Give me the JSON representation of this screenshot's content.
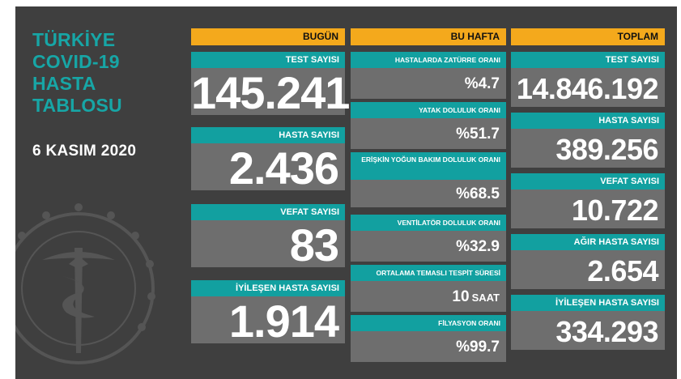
{
  "title_lines": [
    "TÜRKİYE",
    "COVID-19",
    "HASTA",
    "TABLOSU"
  ],
  "date": "6 KASIM 2020",
  "colors": {
    "teal": "#12a0a0",
    "orange": "#f4a91c",
    "board": "#3f3f3f",
    "cell": "#6e6e6e"
  },
  "today": {
    "header": "BUGÜN",
    "cards": [
      {
        "label": "TEST SAYISI",
        "value": "145.241"
      },
      {
        "label": "HASTA SAYISI",
        "value": "2.436"
      },
      {
        "label": "VEFAT SAYISI",
        "value": "83"
      },
      {
        "label": "İYİLEŞEN HASTA SAYISI",
        "value": "1.914"
      }
    ]
  },
  "week": {
    "header": "BU HAFTA",
    "cards": [
      {
        "label": "HASTALARDA ZATÜRRE ORANI",
        "value": "%4.7",
        "unit": ""
      },
      {
        "label": "YATAK DOLULUK ORANI",
        "value": "%51.7",
        "unit": ""
      },
      {
        "label": "ERİŞKİN YOĞUN BAKIM DOLULUK ORANI",
        "value": "%68.5",
        "unit": ""
      },
      {
        "label": "VENTİLATÖR DOLULUK ORANI",
        "value": "%32.9",
        "unit": ""
      },
      {
        "label": "ORTALAMA TEMASLI TESPİT SÜRESİ",
        "value": "10",
        "unit": "SAAT"
      },
      {
        "label": "FİLYASYON ORANI",
        "value": "%99.7",
        "unit": ""
      }
    ]
  },
  "total": {
    "header": "TOPLAM",
    "cards": [
      {
        "label": "TEST SAYISI",
        "value": "14.846.192"
      },
      {
        "label": "HASTA SAYISI",
        "value": "389.256"
      },
      {
        "label": "VEFAT SAYISI",
        "value": "10.722"
      },
      {
        "label": "AĞIR HASTA SAYISI",
        "value": "2.654"
      },
      {
        "label": "İYİLEŞEN HASTA SAYISI",
        "value": "334.293"
      }
    ]
  }
}
